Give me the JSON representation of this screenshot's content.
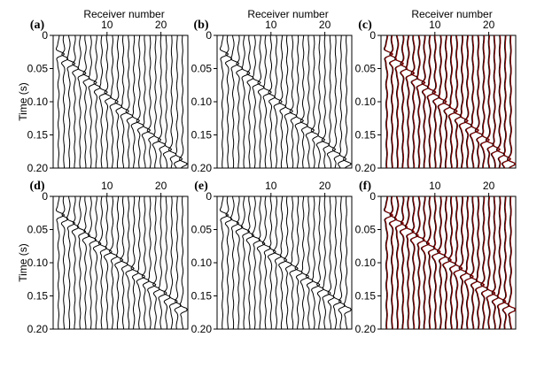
{
  "figure": {
    "top_axis_title": "Receiver number",
    "y_axis_title": "Time (s)",
    "receiver_ticks": [
      "10",
      "20"
    ],
    "time_ticks": [
      "0",
      "0.05",
      "0.10",
      "0.15",
      "0.20"
    ],
    "panel_labels": [
      "(a)",
      "(b)",
      "(c)",
      "(d)",
      "(e)",
      "(f)"
    ],
    "colors": {
      "trace": "#000000",
      "overlay": "#8b0000",
      "frame": "#000000"
    }
  },
  "chart_data": [
    {
      "panel": "(a)",
      "type": "seismic-wiggle",
      "receivers": 24,
      "time_range_s": [
        0,
        0.2
      ],
      "events": [
        {
          "t0_s": 0.028,
          "slowness_s_per_receiver": 0.0072,
          "start_receiver": 1
        }
      ],
      "overlay": false,
      "show_top_axis": true,
      "show_left_axis": true
    },
    {
      "panel": "(b)",
      "type": "seismic-wiggle",
      "receivers": 24,
      "time_range_s": [
        0,
        0.2
      ],
      "events": [
        {
          "t0_s": 0.028,
          "slowness_s_per_receiver": 0.0072,
          "start_receiver": 1
        }
      ],
      "overlay": false,
      "show_top_axis": true,
      "show_left_axis": false
    },
    {
      "panel": "(c)",
      "type": "seismic-wiggle",
      "receivers": 24,
      "time_range_s": [
        0,
        0.2
      ],
      "events": [
        {
          "t0_s": 0.028,
          "slowness_s_per_receiver": 0.0072,
          "start_receiver": 1
        }
      ],
      "overlay": true,
      "show_top_axis": true,
      "show_left_axis": false
    },
    {
      "panel": "(d)",
      "type": "seismic-wiggle",
      "receivers": 24,
      "time_range_s": [
        0,
        0.2
      ],
      "events": [
        {
          "t0_s": 0.028,
          "slowness_s_per_receiver": 0.0062,
          "start_receiver": 1
        }
      ],
      "overlay": false,
      "show_top_axis": true,
      "show_left_axis": true
    },
    {
      "panel": "(e)",
      "type": "seismic-wiggle",
      "receivers": 24,
      "time_range_s": [
        0,
        0.2
      ],
      "events": [
        {
          "t0_s": 0.028,
          "slowness_s_per_receiver": 0.0062,
          "start_receiver": 1
        }
      ],
      "overlay": false,
      "show_top_axis": true,
      "show_left_axis": false
    },
    {
      "panel": "(f)",
      "type": "seismic-wiggle",
      "receivers": 24,
      "time_range_s": [
        0,
        0.2
      ],
      "events": [
        {
          "t0_s": 0.028,
          "slowness_s_per_receiver": 0.0062,
          "start_receiver": 1
        }
      ],
      "overlay": true,
      "show_top_axis": true,
      "show_left_axis": false
    }
  ]
}
